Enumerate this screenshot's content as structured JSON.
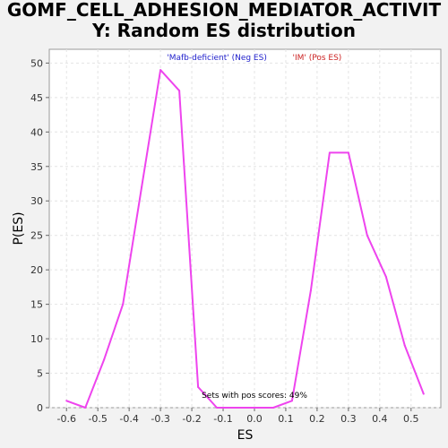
{
  "chart_data": {
    "type": "line",
    "title_lines": [
      "GOMF_CELL_ADHESION_MEDIATOR_ACTIVIT",
      "Y: Random ES distribution"
    ],
    "xlabel": "ES",
    "ylabel": "P(ES)",
    "xlim": [
      -0.655,
      0.595
    ],
    "ylim": [
      0,
      52
    ],
    "x_ticks": [
      "-0.6",
      "-0.5",
      "-0.4",
      "-0.3",
      "-0.2",
      "-0.1",
      "0.0",
      "0.1",
      "0.2",
      "0.3",
      "0.4",
      "0.5"
    ],
    "y_ticks": [
      "0",
      "5",
      "10",
      "15",
      "20",
      "25",
      "30",
      "35",
      "40",
      "45",
      "50"
    ],
    "grid": true,
    "series": [
      {
        "color": "#ee44ee",
        "x": [
          -0.6,
          -0.54,
          -0.48,
          -0.42,
          -0.36,
          -0.3,
          -0.24,
          -0.18,
          -0.12,
          -0.06,
          0.0,
          0.06,
          0.12,
          0.18,
          0.24,
          0.3,
          0.36,
          0.42,
          0.48,
          0.54
        ],
        "y": [
          1,
          0,
          7,
          15,
          32,
          49,
          46,
          3,
          0,
          0,
          0,
          0,
          1,
          17,
          37,
          37,
          25,
          19,
          9,
          2
        ]
      }
    ],
    "annotations": {
      "neg_label": "'Mafb-deficient' (Neg ES)",
      "neg_color": "#2222cc",
      "pos_label": "'IM' (Pos ES)",
      "pos_color": "#cc2222",
      "sets_text": "Sets with pos scores: 49%"
    }
  }
}
